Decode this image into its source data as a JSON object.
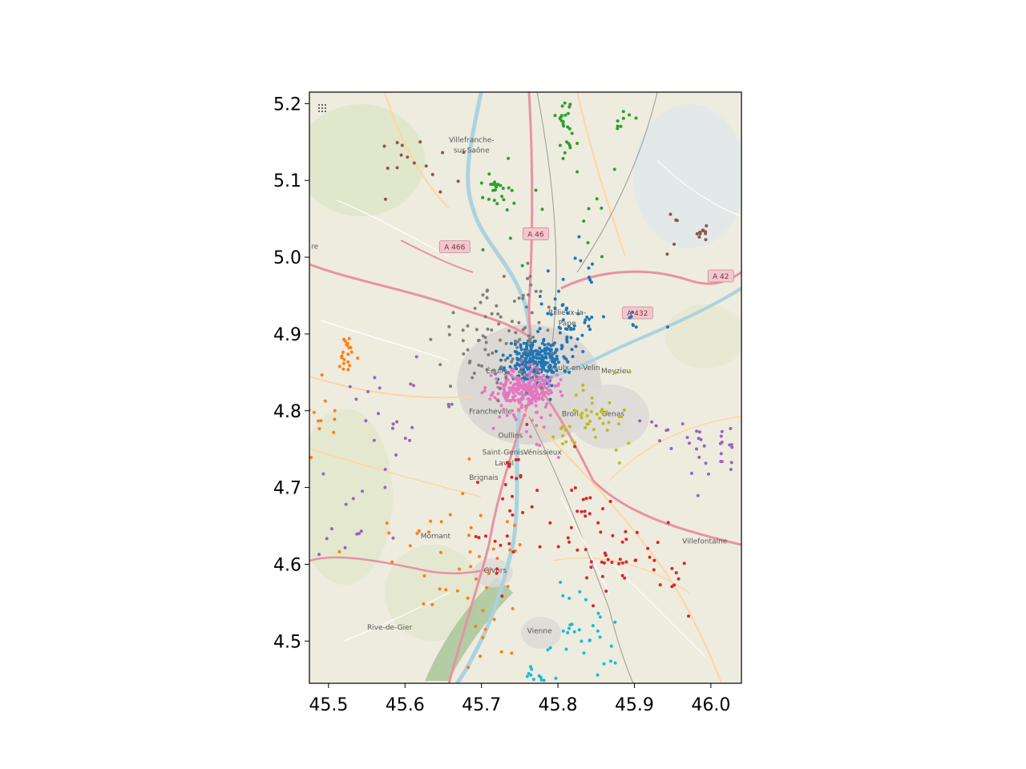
{
  "chart_data": {
    "type": "scatter",
    "background": "map tiles (OpenStreetMap style)",
    "xlim": [
      45.475,
      46.04
    ],
    "ylim": [
      4.445,
      5.215
    ],
    "xticks": [
      "45.5",
      "45.6",
      "45.7",
      "45.8",
      "45.9",
      "46.0"
    ],
    "xtick_values": [
      45.5,
      45.6,
      45.7,
      45.8,
      45.9,
      46.0
    ],
    "yticks": [
      "4.5",
      "4.6",
      "4.7",
      "4.8",
      "4.9",
      "5.0",
      "5.1",
      "5.2"
    ],
    "ytick_values": [
      4.5,
      4.6,
      4.7,
      4.8,
      4.9,
      5.0,
      5.1,
      5.2
    ],
    "grid": false,
    "legend": null,
    "title": "",
    "xlabel": "",
    "ylabel": "",
    "map_labels": [
      {
        "text": "Villefranche-",
        "x": 45.687,
        "y": 5.15
      },
      {
        "text": "sur-Saône",
        "x": 45.687,
        "y": 5.136
      },
      {
        "text": "Rillieux-la-",
        "x": 45.812,
        "y": 4.925
      },
      {
        "text": "Pape",
        "x": 45.812,
        "y": 4.911
      },
      {
        "text": "Écully",
        "x": 45.72,
        "y": 4.849
      },
      {
        "text": "Vaulx-en-Velin",
        "x": 45.822,
        "y": 4.853
      },
      {
        "text": "Meyzieu",
        "x": 45.876,
        "y": 4.849
      },
      {
        "text": "Francheville",
        "x": 45.712,
        "y": 4.796
      },
      {
        "text": "Bron",
        "x": 45.816,
        "y": 4.793
      },
      {
        "text": "Genas",
        "x": 45.872,
        "y": 4.793
      },
      {
        "text": "Oullins",
        "x": 45.738,
        "y": 4.765
      },
      {
        "text": "Saint-Genis-",
        "x": 45.73,
        "y": 4.743
      },
      {
        "text": "Laval",
        "x": 45.73,
        "y": 4.729
      },
      {
        "text": "Vénissieux",
        "x": 45.78,
        "y": 4.743
      },
      {
        "text": "Brignais",
        "x": 45.703,
        "y": 4.71
      },
      {
        "text": "Mornant",
        "x": 45.64,
        "y": 4.634
      },
      {
        "text": "Givors",
        "x": 45.718,
        "y": 4.589
      },
      {
        "text": "Villefontaine",
        "x": 45.992,
        "y": 4.627
      },
      {
        "text": "Rive-de-Gier",
        "x": 45.58,
        "y": 4.515
      },
      {
        "text": "Vienne",
        "x": 45.776,
        "y": 4.51
      },
      {
        "text": "re",
        "x": 45.482,
        "y": 5.011
      }
    ],
    "road_shields": [
      {
        "text": "A 466",
        "x": 45.665,
        "y": 5.013
      },
      {
        "text": "A 46",
        "x": 45.771,
        "y": 5.03
      },
      {
        "text": "A 432",
        "x": 45.904,
        "y": 4.927
      },
      {
        "text": "A 42",
        "x": 46.013,
        "y": 4.975
      }
    ],
    "series": [
      {
        "color": "#1f77b4",
        "seed": 11,
        "clusters": [
          {
            "x": 45.77,
            "y": 4.865,
            "sx": 0.018,
            "sy": 0.014,
            "n": 260
          },
          {
            "x": 45.8,
            "y": 4.905,
            "sx": 0.015,
            "sy": 0.03,
            "n": 45
          },
          {
            "x": 45.86,
            "y": 4.915,
            "sx": 0.03,
            "sy": 0.008,
            "n": 22
          },
          {
            "x": 45.835,
            "y": 4.995,
            "sx": 0.01,
            "sy": 0.03,
            "n": 8
          }
        ]
      },
      {
        "color": "#e377c2",
        "seed": 23,
        "clusters": [
          {
            "x": 45.755,
            "y": 4.827,
            "sx": 0.02,
            "sy": 0.013,
            "n": 260
          },
          {
            "x": 45.76,
            "y": 4.76,
            "sx": 0.025,
            "sy": 0.025,
            "n": 12
          }
        ]
      },
      {
        "color": "#7f7f7f",
        "seed": 37,
        "clusters": [
          {
            "x": 45.735,
            "y": 4.89,
            "sx": 0.025,
            "sy": 0.035,
            "n": 70
          },
          {
            "x": 45.68,
            "y": 4.88,
            "sx": 0.025,
            "sy": 0.03,
            "n": 16
          },
          {
            "x": 45.76,
            "y": 4.96,
            "sx": 0.01,
            "sy": 0.025,
            "n": 10
          }
        ]
      },
      {
        "color": "#2ca02c",
        "seed": 41,
        "clusters": [
          {
            "x": 45.72,
            "y": 5.085,
            "sx": 0.012,
            "sy": 0.01,
            "n": 22
          },
          {
            "x": 45.815,
            "y": 5.175,
            "sx": 0.008,
            "sy": 0.025,
            "n": 28
          },
          {
            "x": 45.89,
            "y": 5.178,
            "sx": 0.01,
            "sy": 0.006,
            "n": 8
          },
          {
            "x": 45.74,
            "y": 5.05,
            "sx": 0.025,
            "sy": 0.04,
            "n": 8
          },
          {
            "x": 45.845,
            "y": 5.06,
            "sx": 0.02,
            "sy": 0.04,
            "n": 7
          }
        ]
      },
      {
        "color": "#8c564b",
        "seed": 53,
        "clusters": [
          {
            "x": 45.62,
            "y": 5.135,
            "sx": 0.035,
            "sy": 0.025,
            "n": 16
          },
          {
            "x": 45.99,
            "y": 5.03,
            "sx": 0.006,
            "sy": 0.005,
            "n": 12
          },
          {
            "x": 45.94,
            "y": 5.04,
            "sx": 0.03,
            "sy": 0.02,
            "n": 5
          }
        ]
      },
      {
        "color": "#ff7f0e",
        "seed": 67,
        "clusters": [
          {
            "x": 45.525,
            "y": 4.87,
            "sx": 0.006,
            "sy": 0.012,
            "n": 22
          },
          {
            "x": 45.49,
            "y": 4.8,
            "sx": 0.012,
            "sy": 0.03,
            "n": 12
          },
          {
            "x": 45.66,
            "y": 4.61,
            "sx": 0.05,
            "sy": 0.05,
            "n": 34
          },
          {
            "x": 45.7,
            "y": 4.51,
            "sx": 0.02,
            "sy": 0.04,
            "n": 16
          }
        ]
      },
      {
        "color": "#9467bd",
        "seed": 71,
        "clusters": [
          {
            "x": 45.6,
            "y": 4.79,
            "sx": 0.05,
            "sy": 0.035,
            "n": 22
          },
          {
            "x": 45.51,
            "y": 4.66,
            "sx": 0.04,
            "sy": 0.06,
            "n": 14
          },
          {
            "x": 46.0,
            "y": 4.74,
            "sx": 0.02,
            "sy": 0.025,
            "n": 26
          },
          {
            "x": 45.94,
            "y": 4.77,
            "sx": 0.02,
            "sy": 0.02,
            "n": 8
          }
        ]
      },
      {
        "color": "#bcbd22",
        "seed": 83,
        "clusters": [
          {
            "x": 45.845,
            "y": 4.8,
            "sx": 0.02,
            "sy": 0.02,
            "n": 28
          },
          {
            "x": 45.88,
            "y": 4.77,
            "sx": 0.015,
            "sy": 0.02,
            "n": 10
          },
          {
            "x": 45.81,
            "y": 4.77,
            "sx": 0.01,
            "sy": 0.01,
            "n": 10
          }
        ]
      },
      {
        "color": "#d62728",
        "seed": 97,
        "clusters": [
          {
            "x": 45.73,
            "y": 4.7,
            "sx": 0.03,
            "sy": 0.04,
            "n": 22
          },
          {
            "x": 45.83,
            "y": 4.67,
            "sx": 0.02,
            "sy": 0.02,
            "n": 16
          },
          {
            "x": 45.85,
            "y": 4.605,
            "sx": 0.04,
            "sy": 0.02,
            "n": 28
          },
          {
            "x": 45.94,
            "y": 4.6,
            "sx": 0.03,
            "sy": 0.03,
            "n": 16
          },
          {
            "x": 45.72,
            "y": 4.62,
            "sx": 0.03,
            "sy": 0.03,
            "n": 10
          }
        ]
      },
      {
        "color": "#17becf",
        "seed": 101,
        "clusters": [
          {
            "x": 45.82,
            "y": 4.495,
            "sx": 0.02,
            "sy": 0.02,
            "n": 18
          },
          {
            "x": 45.77,
            "y": 4.455,
            "sx": 0.01,
            "sy": 0.006,
            "n": 10
          },
          {
            "x": 45.86,
            "y": 4.53,
            "sx": 0.01,
            "sy": 0.03,
            "n": 8
          },
          {
            "x": 45.82,
            "y": 4.56,
            "sx": 0.015,
            "sy": 0.015,
            "n": 5
          }
        ]
      }
    ]
  }
}
